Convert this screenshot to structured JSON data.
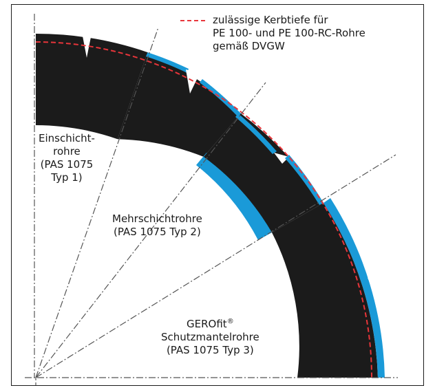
{
  "colors": {
    "pipe": "#1b1b1b",
    "coating": "#1a9ad8",
    "notch_line": "#e8353a",
    "axis": "#666666"
  },
  "legend": {
    "line1": "zulässige Kerbtiefe für",
    "line2": "PE 100- und PE 100-RC-Rohre",
    "line3": "gemäß DVGW"
  },
  "labels": {
    "type1": {
      "line1": "Einschicht-",
      "line2": "rohre",
      "line3": "(PAS 1075",
      "line4": "Typ 1)"
    },
    "type2": {
      "line1": "Mehrschichtrohre",
      "line2": "(PAS 1075 Typ 2)"
    },
    "type3": {
      "line1_main": "GEROfit",
      "line1_sup": "®",
      "line2": "Schutzmantelrohre",
      "line3": "(PAS 1075 Typ 3)"
    }
  }
}
